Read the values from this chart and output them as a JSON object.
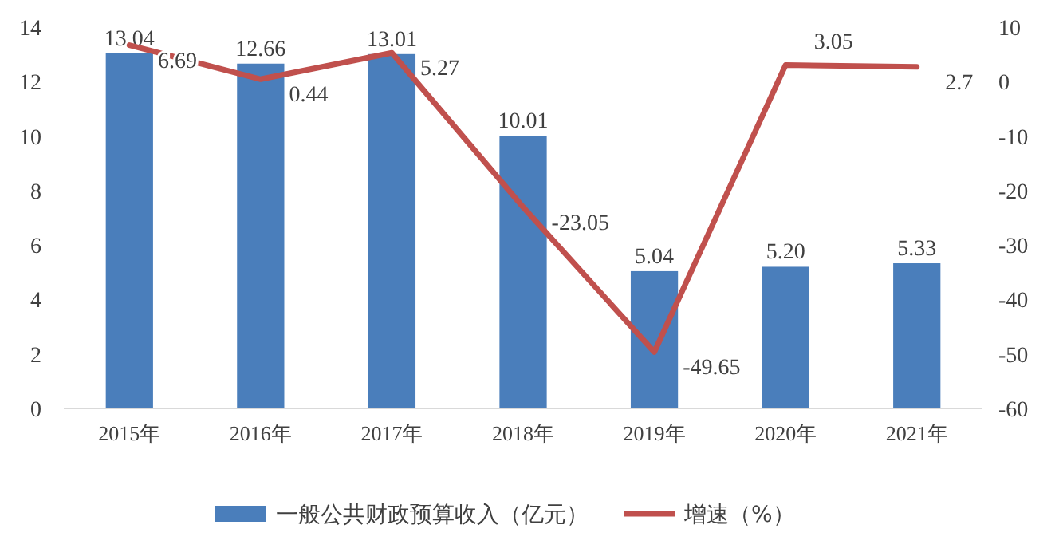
{
  "chart_data": {
    "type": "bar",
    "categories": [
      "2015年",
      "2016年",
      "2017年",
      "2018年",
      "2019年",
      "2020年",
      "2021年"
    ],
    "series": [
      {
        "name": "一般公共财政预算收入（亿元）",
        "color": "#4a7ebb",
        "values": [
          13.04,
          12.66,
          13.01,
          10.01,
          5.04,
          5.2,
          5.33
        ],
        "value_labels": [
          "13.04",
          "12.66",
          "13.01",
          "10.01",
          "5.04",
          "5.20",
          "5.33"
        ]
      },
      {
        "name": "增速（%）",
        "type": "line",
        "axis": "y2",
        "color": "#c0504d",
        "values": [
          6.69,
          0.44,
          5.27,
          -23.05,
          -49.65,
          3.05,
          2.7
        ],
        "value_labels": [
          "6.69",
          "0.44",
          "5.27",
          "-23.05",
          "-49.65",
          "3.05",
          "2.7"
        ]
      }
    ],
    "ylim": [
      0,
      14
    ],
    "yticks": [
      0,
      2,
      4,
      6,
      8,
      10,
      12,
      14
    ],
    "y2lim": [
      -60,
      10
    ],
    "y2ticks": [
      -60,
      -50,
      -40,
      -30,
      -20,
      -10,
      0,
      10
    ],
    "grid": false,
    "legend": "bottom",
    "marker": "none"
  }
}
